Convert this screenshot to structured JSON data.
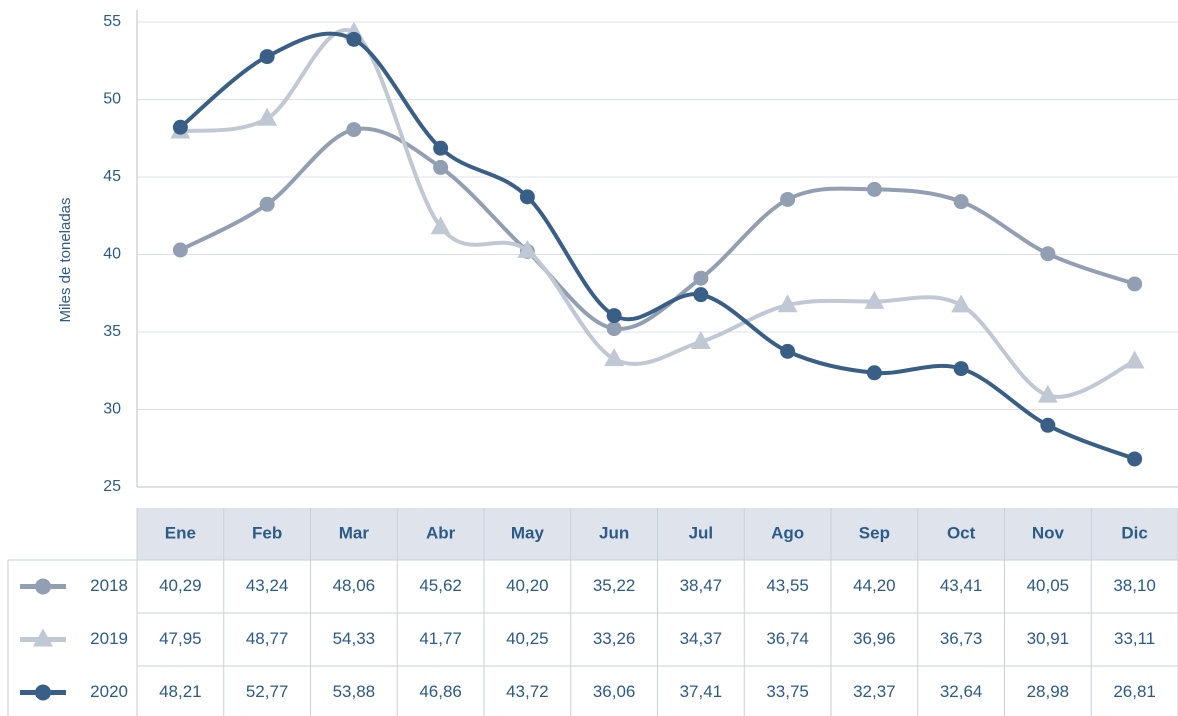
{
  "chart_data": {
    "type": "line",
    "y_label": "Miles de toneladas",
    "categories": [
      "Ene",
      "Feb",
      "Mar",
      "Abr",
      "May",
      "Jun",
      "Jul",
      "Ago",
      "Sep",
      "Oct",
      "Nov",
      "Dic"
    ],
    "ylim": [
      25,
      55
    ],
    "yticks": [
      25,
      30,
      35,
      40,
      45,
      50,
      55
    ],
    "grid": true,
    "series": [
      {
        "name": "2018",
        "color": "#929fb3",
        "marker": "circle",
        "values": [
          40.29,
          43.24,
          48.06,
          45.62,
          40.2,
          35.22,
          38.47,
          43.55,
          44.2,
          43.41,
          40.05,
          38.1
        ],
        "value_labels": [
          "40,29",
          "43,24",
          "48,06",
          "45,62",
          "40,20",
          "35,22",
          "38,47",
          "43,55",
          "44,20",
          "43,41",
          "40,05",
          "38,10"
        ]
      },
      {
        "name": "2019",
        "color": "#c0c8d4",
        "marker": "triangle",
        "values": [
          47.95,
          48.77,
          54.33,
          41.77,
          40.25,
          33.26,
          34.37,
          36.74,
          36.96,
          36.73,
          30.91,
          33.11
        ],
        "value_labels": [
          "47,95",
          "48,77",
          "54,33",
          "41,77",
          "40,25",
          "33,26",
          "34,37",
          "36,74",
          "36,96",
          "36,73",
          "30,91",
          "33,11"
        ]
      },
      {
        "name": "2020",
        "color": "#3a5f86",
        "marker": "circle",
        "values": [
          48.21,
          52.77,
          53.88,
          46.86,
          43.72,
          36.06,
          37.41,
          33.75,
          32.37,
          32.64,
          28.98,
          26.81
        ],
        "value_labels": [
          "48,21",
          "52,77",
          "53,88",
          "46,86",
          "43,72",
          "36,06",
          "37,41",
          "33,75",
          "32,37",
          "32,64",
          "28,98",
          "26,81"
        ]
      }
    ]
  }
}
